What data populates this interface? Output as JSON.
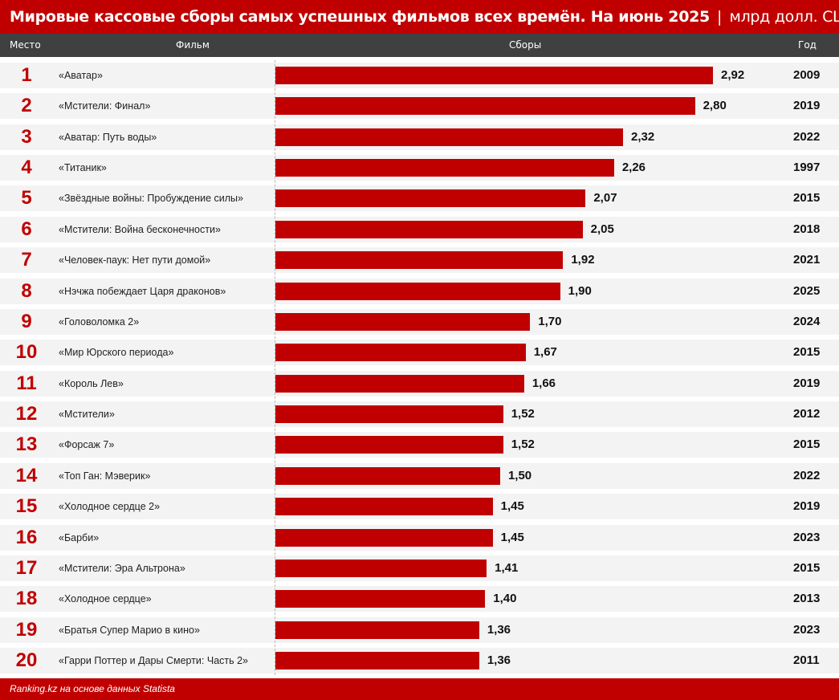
{
  "title": {
    "main": "Мировые кассовые сборы самых успешных фильмов всех времён. На июнь 2025",
    "separator": "|",
    "unit": "млрд долл. США"
  },
  "header": {
    "place": "Место",
    "film": "Фильм",
    "gross": "Сборы",
    "year": "Год"
  },
  "footer": {
    "source": "Ranking.kz на основе данных Statista"
  },
  "colors": {
    "accent": "#c00000",
    "header_bg": "#404040",
    "row_bg": "#f3f3f3"
  },
  "chart_data": {
    "type": "bar",
    "orientation": "horizontal",
    "title": "Мировые кассовые сборы самых успешных фильмов всех времён. На июнь 2025 | млрд долл. США",
    "xlabel": "Сборы",
    "ylabel": "Фильм",
    "xlim": [
      0,
      2.92
    ],
    "grid": false,
    "rows": [
      {
        "rank": "1",
        "film": "«Аватар»",
        "value": 2.92,
        "label": "2,92",
        "year": "2009"
      },
      {
        "rank": "2",
        "film": "«Мстители: Финал»",
        "value": 2.8,
        "label": "2,80",
        "year": "2019"
      },
      {
        "rank": "3",
        "film": "«Аватар: Путь воды»",
        "value": 2.32,
        "label": "2,32",
        "year": "2022"
      },
      {
        "rank": "4",
        "film": "«Титаник»",
        "value": 2.26,
        "label": "2,26",
        "year": "1997"
      },
      {
        "rank": "5",
        "film": "«Звёздные войны: Пробуждение силы»",
        "value": 2.07,
        "label": "2,07",
        "year": "2015"
      },
      {
        "rank": "6",
        "film": "«Мстители: Война бесконечности»",
        "value": 2.05,
        "label": "2,05",
        "year": "2018"
      },
      {
        "rank": "7",
        "film": "«Человек-паук: Нет пути домой»",
        "value": 1.92,
        "label": "1,92",
        "year": "2021"
      },
      {
        "rank": "8",
        "film": "«Нэчжа побеждает Царя драконов»",
        "value": 1.9,
        "label": "1,90",
        "year": "2025"
      },
      {
        "rank": "9",
        "film": "«Головоломка 2»",
        "value": 1.7,
        "label": "1,70",
        "year": "2024"
      },
      {
        "rank": "10",
        "film": "«Мир Юрского периода»",
        "value": 1.67,
        "label": "1,67",
        "year": "2015"
      },
      {
        "rank": "11",
        "film": "«Король Лев»",
        "value": 1.66,
        "label": "1,66",
        "year": "2019"
      },
      {
        "rank": "12",
        "film": "«Мстители»",
        "value": 1.52,
        "label": "1,52",
        "year": "2012"
      },
      {
        "rank": "13",
        "film": "«Форсаж 7»",
        "value": 1.52,
        "label": "1,52",
        "year": "2015"
      },
      {
        "rank": "14",
        "film": "«Топ Ган: Мэверик»",
        "value": 1.5,
        "label": "1,50",
        "year": "2022"
      },
      {
        "rank": "15",
        "film": "«Холодное сердце 2»",
        "value": 1.45,
        "label": "1,45",
        "year": "2019"
      },
      {
        "rank": "16",
        "film": "«Барби»",
        "value": 1.45,
        "label": "1,45",
        "year": "2023"
      },
      {
        "rank": "17",
        "film": "«Мстители: Эра Альтрона»",
        "value": 1.41,
        "label": "1,41",
        "year": "2015"
      },
      {
        "rank": "18",
        "film": "«Холодное сердце»",
        "value": 1.4,
        "label": "1,40",
        "year": "2013"
      },
      {
        "rank": "19",
        "film": "«Братья Супер Марио в кино»",
        "value": 1.36,
        "label": "1,36",
        "year": "2023"
      },
      {
        "rank": "20",
        "film": "«Гарри Поттер и Дары Смерти: Часть 2»",
        "value": 1.36,
        "label": "1,36",
        "year": "2011"
      }
    ]
  }
}
